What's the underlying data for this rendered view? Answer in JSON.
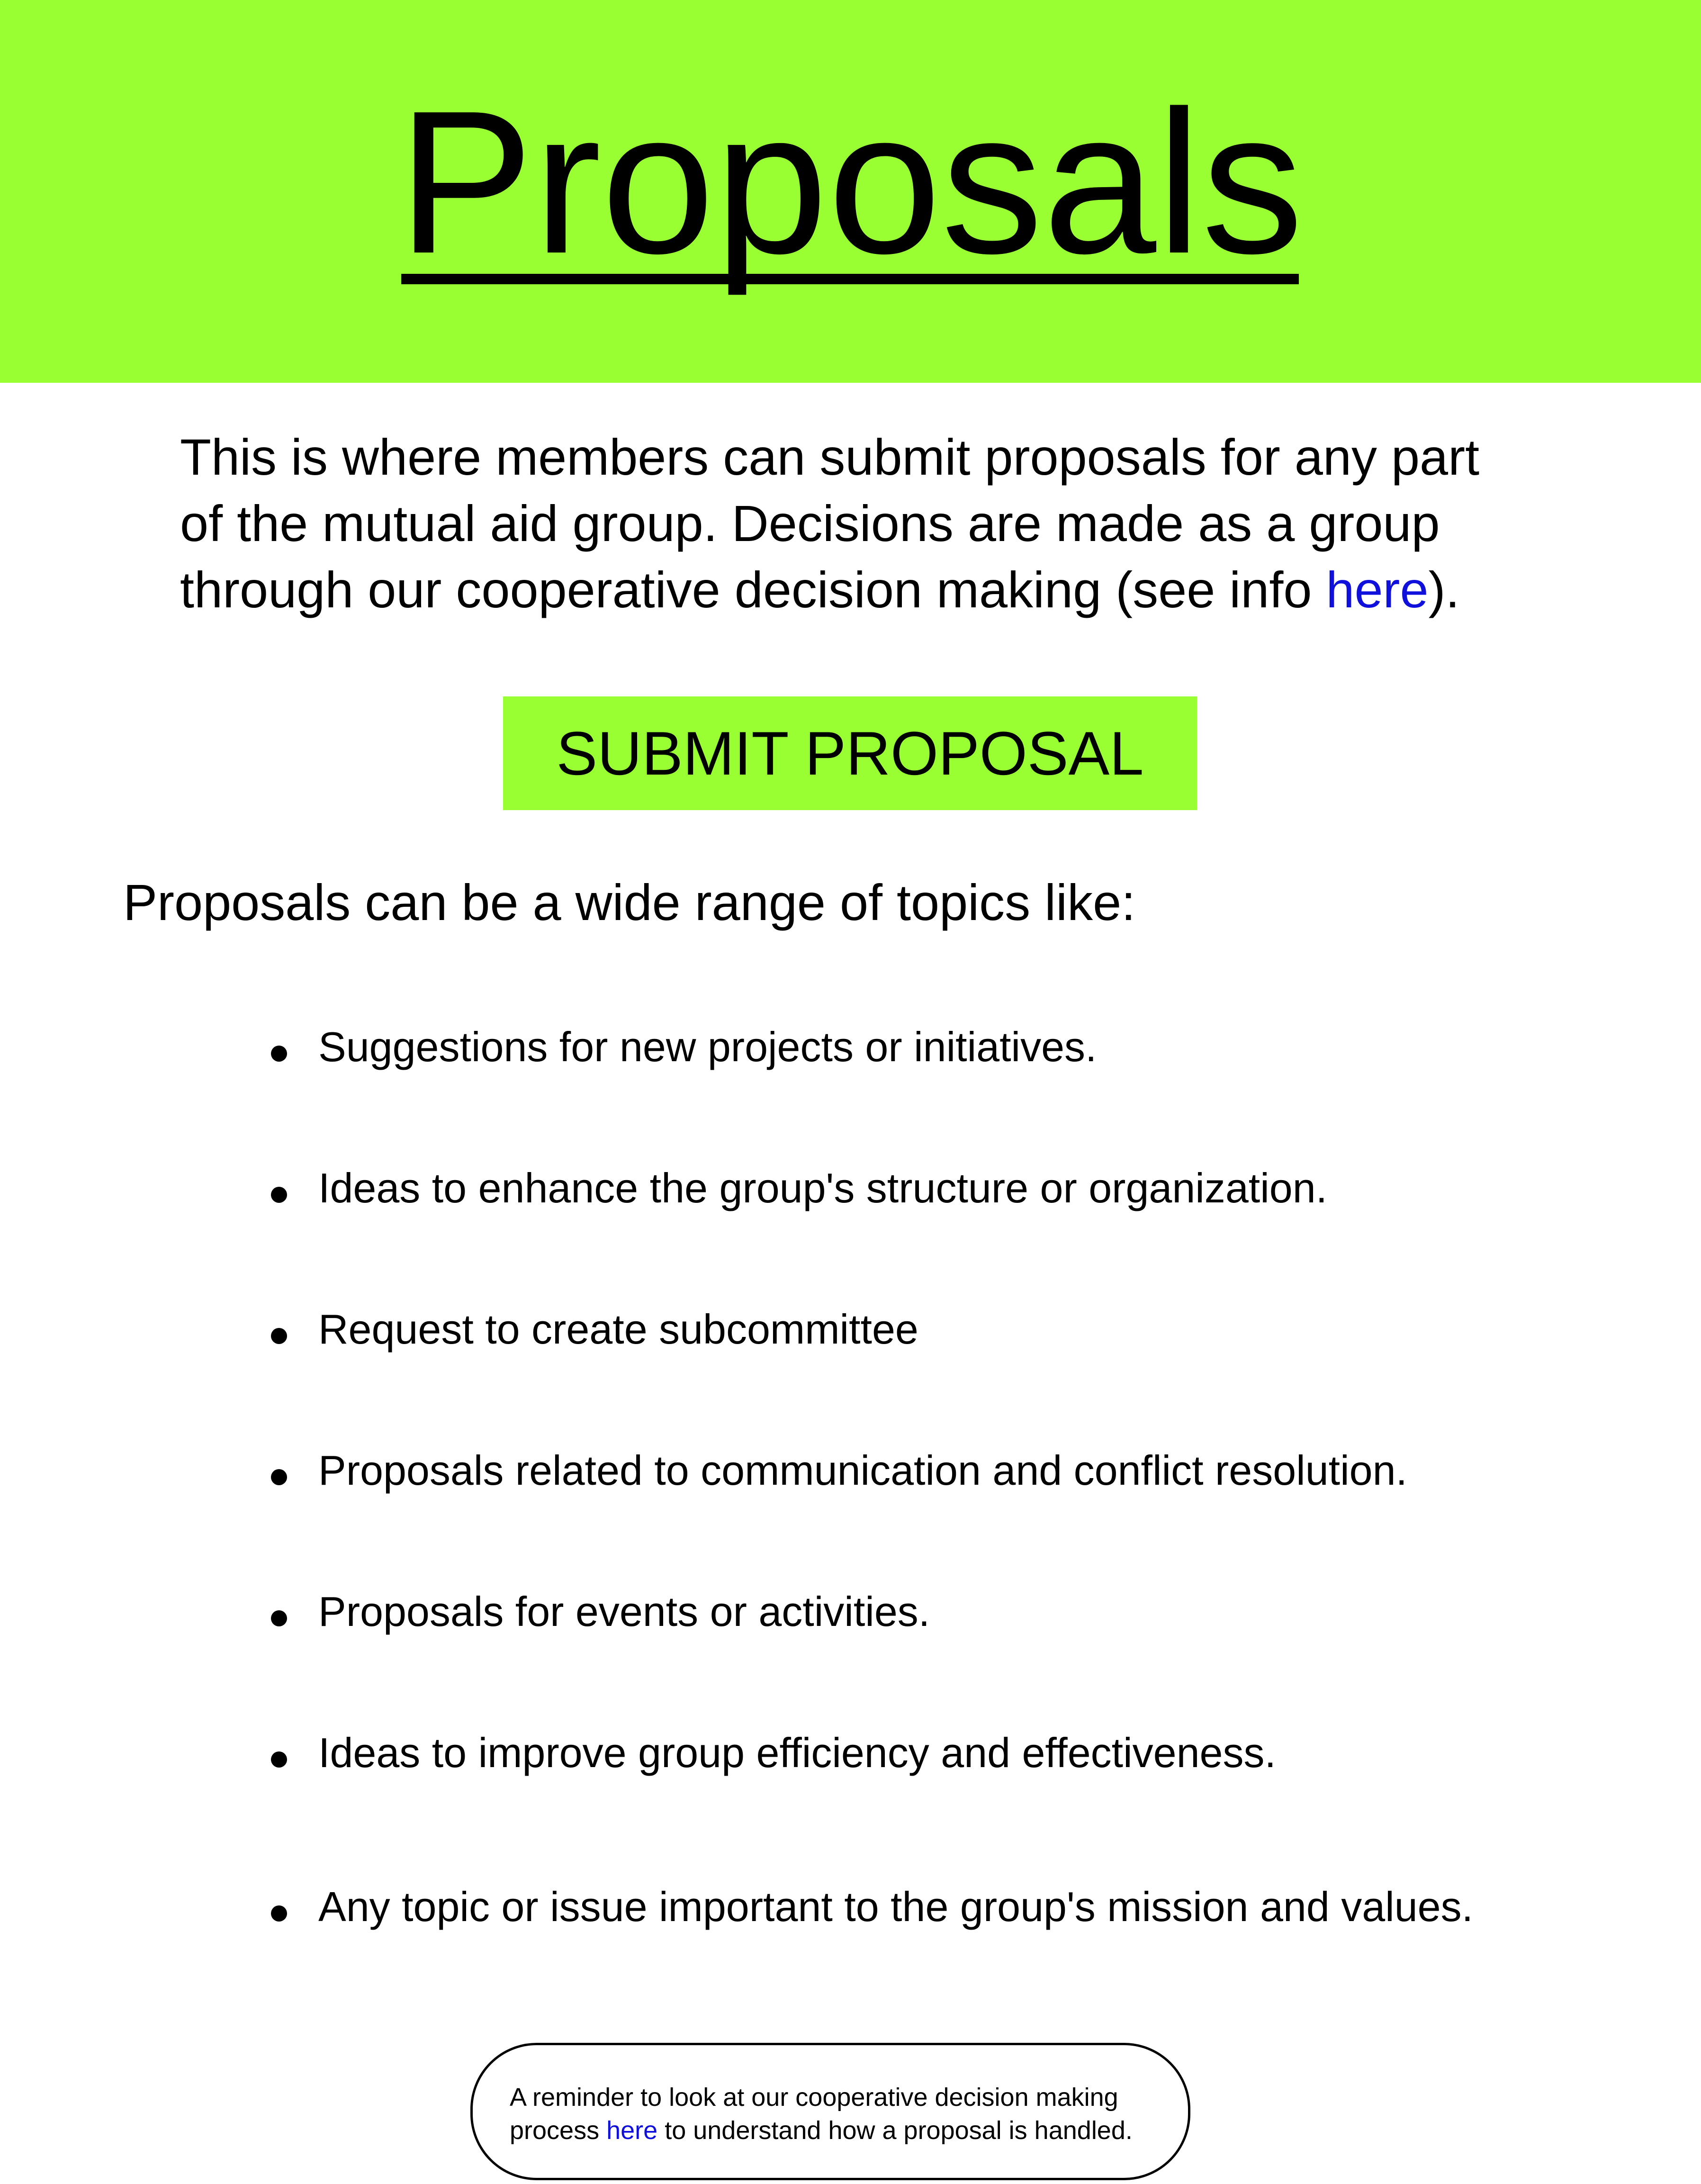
{
  "header": {
    "title": "Proposals",
    "background_color": "#99ff33"
  },
  "intro": {
    "line1": "This is where members can submit proposals for any part",
    "line2": "of the mutual aid group. Decisions are made as a group",
    "line3_prefix": "through our cooperative decision making (see info ",
    "link_text": "here",
    "line3_suffix": ")."
  },
  "submit_button": {
    "label": "SUBMIT PROPOSAL",
    "background_color": "#99ff33"
  },
  "topics": {
    "heading": "Proposals can be a wide range of topics like:",
    "items": [
      "Suggestions for new projects or initiatives.",
      "Ideas to enhance the group's structure or organization.",
      "Request to create subcommittee",
      "Proposals related to communication and conflict resolution.",
      "Proposals for events or activities.",
      "Ideas to improve group efficiency and effectiveness.",
      "Any topic or issue important to the group's mission and values."
    ]
  },
  "reminder": {
    "line1": "A reminder to look at our cooperative decision making",
    "line2_prefix": "process ",
    "link_text": "here",
    "line2_suffix": " to understand how a proposal is handled."
  },
  "colors": {
    "accent": "#99ff33",
    "link": "#1010dd",
    "text": "#000000"
  }
}
